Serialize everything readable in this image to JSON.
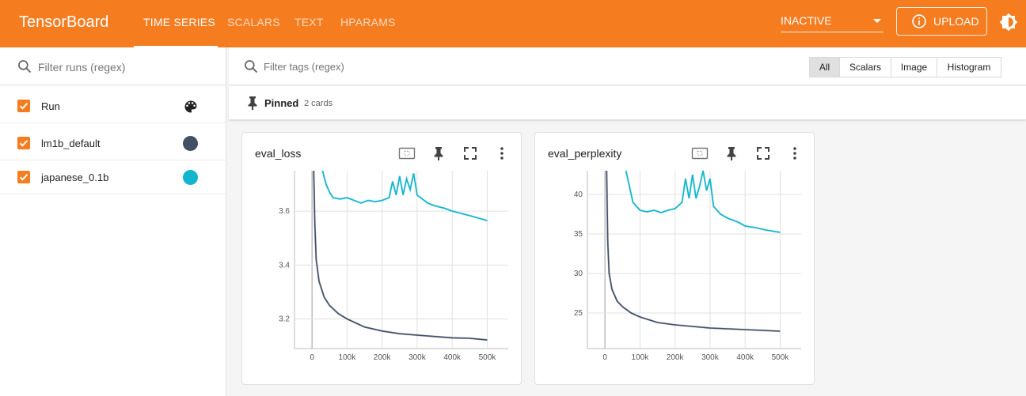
{
  "app": {
    "brand": "TensorBoard",
    "tabs": [
      {
        "label": "TIME SERIES",
        "active": true
      },
      {
        "label": "SCALARS",
        "active": false
      },
      {
        "label": "TEXT",
        "active": false
      },
      {
        "label": "HPARAMS",
        "active": false
      }
    ],
    "reload_status": "INACTIVE",
    "upload_label": "UPLOAD",
    "accent_color": "#f57c1f"
  },
  "sidebar": {
    "filter_placeholder": "Filter runs (regex)",
    "header_label": "Run",
    "runs": [
      {
        "name": "lm1b_default",
        "color": "#425066",
        "checked": true
      },
      {
        "name": "japanese_0.1b",
        "color": "#12b5cb",
        "checked": true
      }
    ]
  },
  "main": {
    "filter_placeholder": "Filter tags (regex)",
    "type_filters": [
      {
        "label": "All",
        "selected": true
      },
      {
        "label": "Scalars",
        "selected": false
      },
      {
        "label": "Image",
        "selected": false
      },
      {
        "label": "Histogram",
        "selected": false
      }
    ],
    "pinned": {
      "title": "Pinned",
      "count_label": "2 cards"
    }
  },
  "chart_data": [
    {
      "type": "line",
      "title": "eval_loss",
      "x_ticks": [
        "0",
        "100k",
        "200k",
        "300k",
        "400k",
        "500k"
      ],
      "y_ticks": [
        "3.2",
        "3.4",
        "3.6"
      ],
      "xlim": [
        -50000,
        560000
      ],
      "ylim": [
        3.09,
        3.75
      ],
      "series": [
        {
          "name": "lm1b_default",
          "color": "#425066",
          "x": [
            5000,
            8000,
            12000,
            20000,
            35000,
            50000,
            75000,
            100000,
            150000,
            200000,
            250000,
            300000,
            350000,
            400000,
            450000,
            500000
          ],
          "y": [
            3.75,
            3.55,
            3.42,
            3.34,
            3.28,
            3.25,
            3.22,
            3.2,
            3.17,
            3.155,
            3.145,
            3.14,
            3.135,
            3.13,
            3.128,
            3.122
          ]
        },
        {
          "name": "japanese_0.1b",
          "color": "#12b5cb",
          "x": [
            30000,
            40000,
            50000,
            60000,
            80000,
            100000,
            120000,
            140000,
            160000,
            180000,
            200000,
            220000,
            230000,
            240000,
            250000,
            260000,
            270000,
            280000,
            290000,
            300000,
            310000,
            330000,
            350000,
            380000,
            400000,
            430000,
            460000,
            500000
          ],
          "y": [
            3.75,
            3.7,
            3.67,
            3.65,
            3.645,
            3.65,
            3.64,
            3.63,
            3.64,
            3.635,
            3.64,
            3.65,
            3.71,
            3.66,
            3.73,
            3.66,
            3.72,
            3.68,
            3.74,
            3.66,
            3.65,
            3.63,
            3.62,
            3.61,
            3.6,
            3.59,
            3.58,
            3.565
          ]
        }
      ]
    },
    {
      "type": "line",
      "title": "eval_perplexity",
      "x_ticks": [
        "0",
        "100k",
        "200k",
        "300k",
        "400k",
        "500k"
      ],
      "y_ticks": [
        "25",
        "30",
        "35",
        "40"
      ],
      "xlim": [
        -50000,
        560000
      ],
      "ylim": [
        20.5,
        43
      ],
      "series": [
        {
          "name": "lm1b_default",
          "color": "#425066",
          "x": [
            5000,
            8000,
            12000,
            20000,
            35000,
            50000,
            75000,
            100000,
            150000,
            200000,
            250000,
            300000,
            350000,
            400000,
            450000,
            500000
          ],
          "y": [
            43,
            34,
            30,
            28,
            26.5,
            25.8,
            25,
            24.5,
            23.8,
            23.5,
            23.3,
            23.1,
            23.0,
            22.9,
            22.8,
            22.7
          ]
        },
        {
          "name": "japanese_0.1b",
          "color": "#12b5cb",
          "x": [
            60000,
            70000,
            80000,
            90000,
            100000,
            120000,
            140000,
            160000,
            180000,
            200000,
            220000,
            230000,
            240000,
            250000,
            260000,
            270000,
            280000,
            290000,
            300000,
            310000,
            330000,
            350000,
            380000,
            400000,
            430000,
            460000,
            500000
          ],
          "y": [
            43,
            41,
            39,
            38.5,
            38,
            37.8,
            38,
            37.7,
            38,
            38.2,
            39,
            42,
            39.5,
            42.5,
            39.5,
            41,
            43,
            40.5,
            42,
            38.5,
            37.5,
            37,
            36.5,
            36,
            35.8,
            35.5,
            35.2
          ]
        }
      ]
    }
  ]
}
